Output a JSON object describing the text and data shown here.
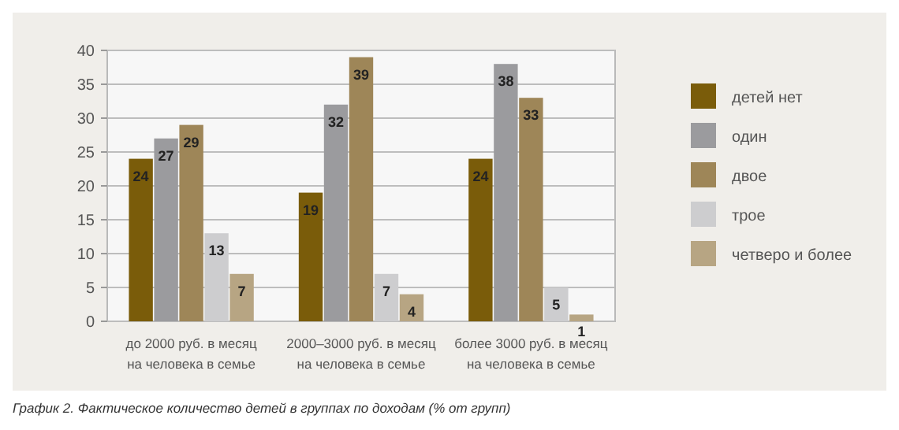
{
  "chart_data": {
    "type": "bar",
    "categories": [
      "до 2000 руб. в месяц\nна человека в семье",
      "2000–3000 руб. в месяц\nна человека в семье",
      "более 3000 руб. в месяц\nна человека в семье"
    ],
    "series": [
      {
        "name": "детей нет",
        "color": "#7a5c0a",
        "values": [
          24,
          19,
          24
        ]
      },
      {
        "name": "один",
        "color": "#9b9b9e",
        "values": [
          27,
          32,
          38
        ]
      },
      {
        "name": "двое",
        "color": "#9e8658",
        "values": [
          29,
          39,
          33
        ]
      },
      {
        "name": "трое",
        "color": "#cdcdcf",
        "values": [
          13,
          7,
          5
        ]
      },
      {
        "name": "четверо и более",
        "color": "#b7a583",
        "values": [
          7,
          4,
          1
        ]
      }
    ],
    "ylim": [
      0,
      40
    ],
    "yticks": [
      0,
      5,
      10,
      15,
      20,
      25,
      30,
      35,
      40
    ],
    "grid": "y",
    "legend": "right",
    "data_labels": true,
    "annotations": [
      "График 2. Фактическое количество детей в группах по доходам (% от групп)"
    ]
  }
}
